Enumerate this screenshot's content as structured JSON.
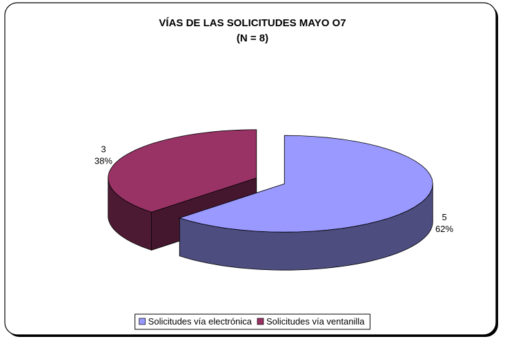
{
  "chart_data": {
    "type": "pie",
    "title": "VÍAS DE LAS SOLICITUDES MAYO O7",
    "subtitle": "(N = 8)",
    "categories": [
      "Solicitudes vía electrónica",
      "Solicitudes vía ventanilla"
    ],
    "values": [
      5,
      3
    ],
    "percent_labels": [
      "62%",
      "38%"
    ],
    "colors": [
      "#9999ff",
      "#993366"
    ],
    "legend": "bottom"
  }
}
